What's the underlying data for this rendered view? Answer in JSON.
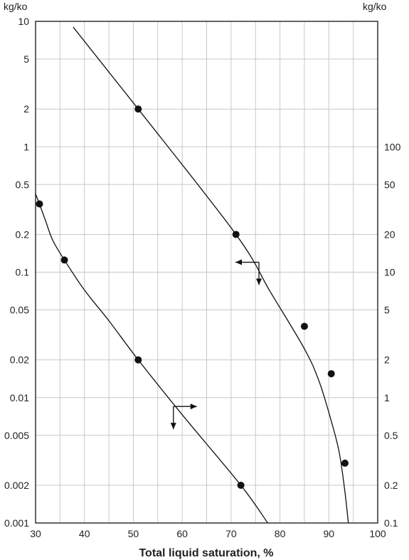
{
  "chart_data": {
    "type": "scatter",
    "title": "",
    "xlabel": "Total liquid saturation, %",
    "ylabel_left": "kg/ko",
    "ylabel_right": "kg/ko",
    "x_scale": "linear",
    "y_scale": "log",
    "xlim": [
      30,
      100
    ],
    "ylim_left": [
      0.001,
      10
    ],
    "ylim_right": [
      0.1,
      1000
    ],
    "grid": true,
    "legend": "none",
    "x_ticks": [
      "30",
      "40",
      "50",
      "60",
      "70",
      "80",
      "90",
      "100"
    ],
    "y_ticks_left": [
      "10",
      "5",
      "2",
      "1",
      "0.5",
      "0.2",
      "0.1",
      "0.05",
      "0.02",
      "0.01",
      "0.005",
      "0.002",
      "0.001"
    ],
    "y_ticks_right": [
      "100",
      "50",
      "20",
      "10",
      "5",
      "2",
      "1",
      "0.5",
      "0.2",
      "0.1"
    ],
    "series": [
      {
        "axis": "left",
        "points": [
          [
            51,
            2
          ],
          [
            71,
            0.2
          ]
        ],
        "curve": [
          [
            37.7,
            9
          ],
          [
            51,
            2
          ],
          [
            71,
            0.2
          ],
          [
            78,
            0.07
          ],
          [
            85,
            0.0245
          ],
          [
            88,
            0.0135
          ],
          [
            90.5,
            0.0065
          ],
          [
            92.1,
            0.0037
          ],
          [
            93.2,
            0.0019
          ],
          [
            94,
            0.001
          ]
        ]
      },
      {
        "axis": "right",
        "points": [
          [
            85,
            3.7
          ],
          [
            90.5,
            1.55
          ],
          [
            93.3,
            0.3
          ]
        ]
      },
      {
        "axis": "left",
        "points": [
          [
            30.8,
            0.35
          ],
          [
            35.9,
            0.125
          ],
          [
            51,
            0.02
          ],
          [
            72,
            0.002
          ]
        ],
        "curve": [
          [
            30,
            0.42
          ],
          [
            30.8,
            0.35
          ],
          [
            32,
            0.26
          ],
          [
            33.5,
            0.18
          ],
          [
            35.9,
            0.125
          ],
          [
            40,
            0.072
          ],
          [
            45,
            0.041
          ],
          [
            51,
            0.02
          ],
          [
            60,
            0.0073
          ],
          [
            72,
            0.002
          ],
          [
            77.5,
            0.001
          ]
        ]
      }
    ],
    "annotations": [
      {
        "note": "arrow pointing left and down",
        "x": 75.7,
        "y_left": 0.12
      },
      {
        "note": "arrow pointing right and down",
        "x": 58.2,
        "y_left": 0.0085
      }
    ],
    "colors": {
      "line": "#111111",
      "grid": "#c8c8c8",
      "frame": "#111111"
    }
  }
}
